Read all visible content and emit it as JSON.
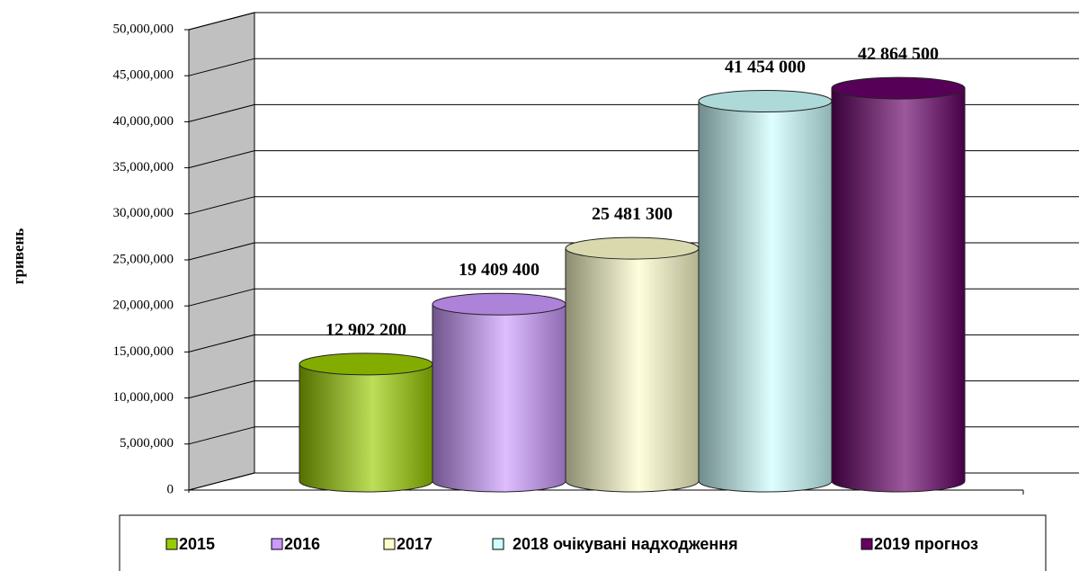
{
  "chart_data": {
    "type": "bar",
    "y_label": "гривень",
    "categories": [
      "2015",
      "2016",
      "2017",
      "2018 очікувані надходження",
      "2019 прогноз"
    ],
    "values": [
      12902200,
      19409400,
      25481300,
      41454000,
      42864500
    ],
    "value_labels": [
      "12 902 200",
      "19 409 400",
      "25 481 300",
      "41 454 000",
      "42 864 500"
    ],
    "colors": [
      "#99cc00",
      "#cc99ff",
      "#ffffcc",
      "#ccffff",
      "#660066"
    ],
    "ylim": [
      0,
      50000000
    ],
    "yticks": [
      0,
      {
        "value": 5000000,
        "label": "5,000,000"
      },
      {
        "value": 10000000,
        "label": "10,000,000"
      },
      {
        "value": 15000000,
        "label": "15,000,000"
      },
      {
        "value": 20000000,
        "label": "20,000,000"
      },
      {
        "value": 25000000,
        "label": "25,000,000"
      },
      {
        "value": 30000000,
        "label": "30,000,000"
      },
      {
        "value": 35000000,
        "label": "35,000,000"
      },
      {
        "value": 40000000,
        "label": "40,000,000"
      },
      {
        "value": 45000000,
        "label": "45,000,000"
      },
      {
        "value": 50000000,
        "label": "50,000,000"
      }
    ],
    "grid": true
  }
}
